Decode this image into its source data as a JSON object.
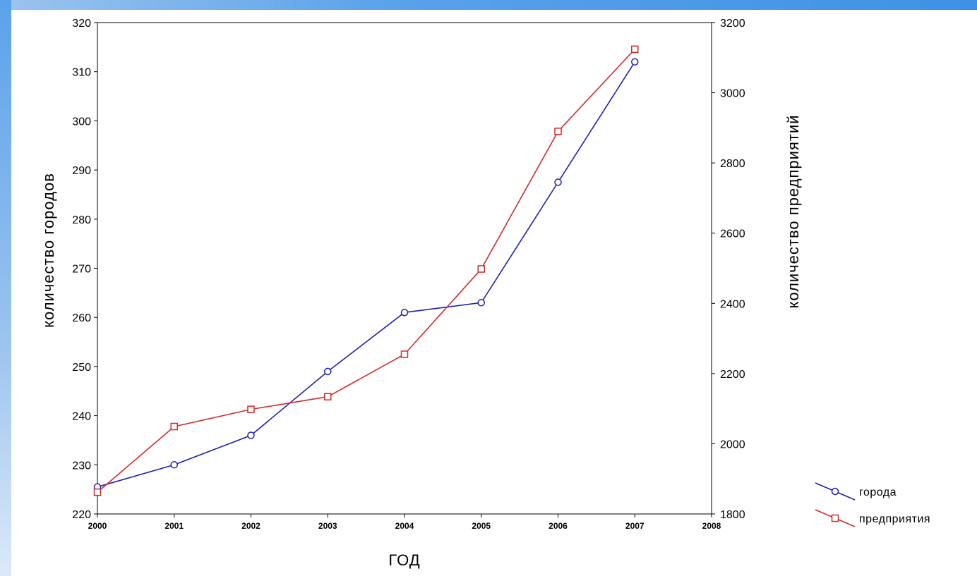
{
  "chart_data": {
    "type": "line",
    "x": [
      2000,
      2001,
      2002,
      2003,
      2004,
      2005,
      2006,
      2007
    ],
    "x_ticks": [
      "2000",
      "2001",
      "2002",
      "2003",
      "2004",
      "2005",
      "2006",
      "2007",
      "2008"
    ],
    "xlim": [
      2000,
      2008
    ],
    "xlabel": "ГОД",
    "ylabel_left": "количество городов",
    "ylim_left": [
      220,
      320
    ],
    "y_ticks_left": [
      "220",
      "230",
      "240",
      "250",
      "260",
      "270",
      "280",
      "290",
      "300",
      "310",
      "320"
    ],
    "ylabel_right": "количество предприятий",
    "ylim_right": [
      1800,
      3200
    ],
    "y_ticks_right": [
      "1800",
      "2000",
      "2200",
      "2400",
      "2600",
      "2800",
      "3000",
      "3200"
    ],
    "grid": false,
    "legend_position": "bottom-right, outside plot",
    "series": [
      {
        "name": "города",
        "axis": "left",
        "marker": "circle",
        "color": "#1f1fb4",
        "values": [
          225.5,
          230,
          236,
          249,
          261,
          263,
          287.5,
          312
        ]
      },
      {
        "name": "предприятия",
        "axis": "right",
        "marker": "square",
        "color": "#d42a2a",
        "values": [
          1862,
          2049,
          2098,
          2134,
          2255,
          2498,
          2890,
          3124
        ]
      }
    ]
  }
}
